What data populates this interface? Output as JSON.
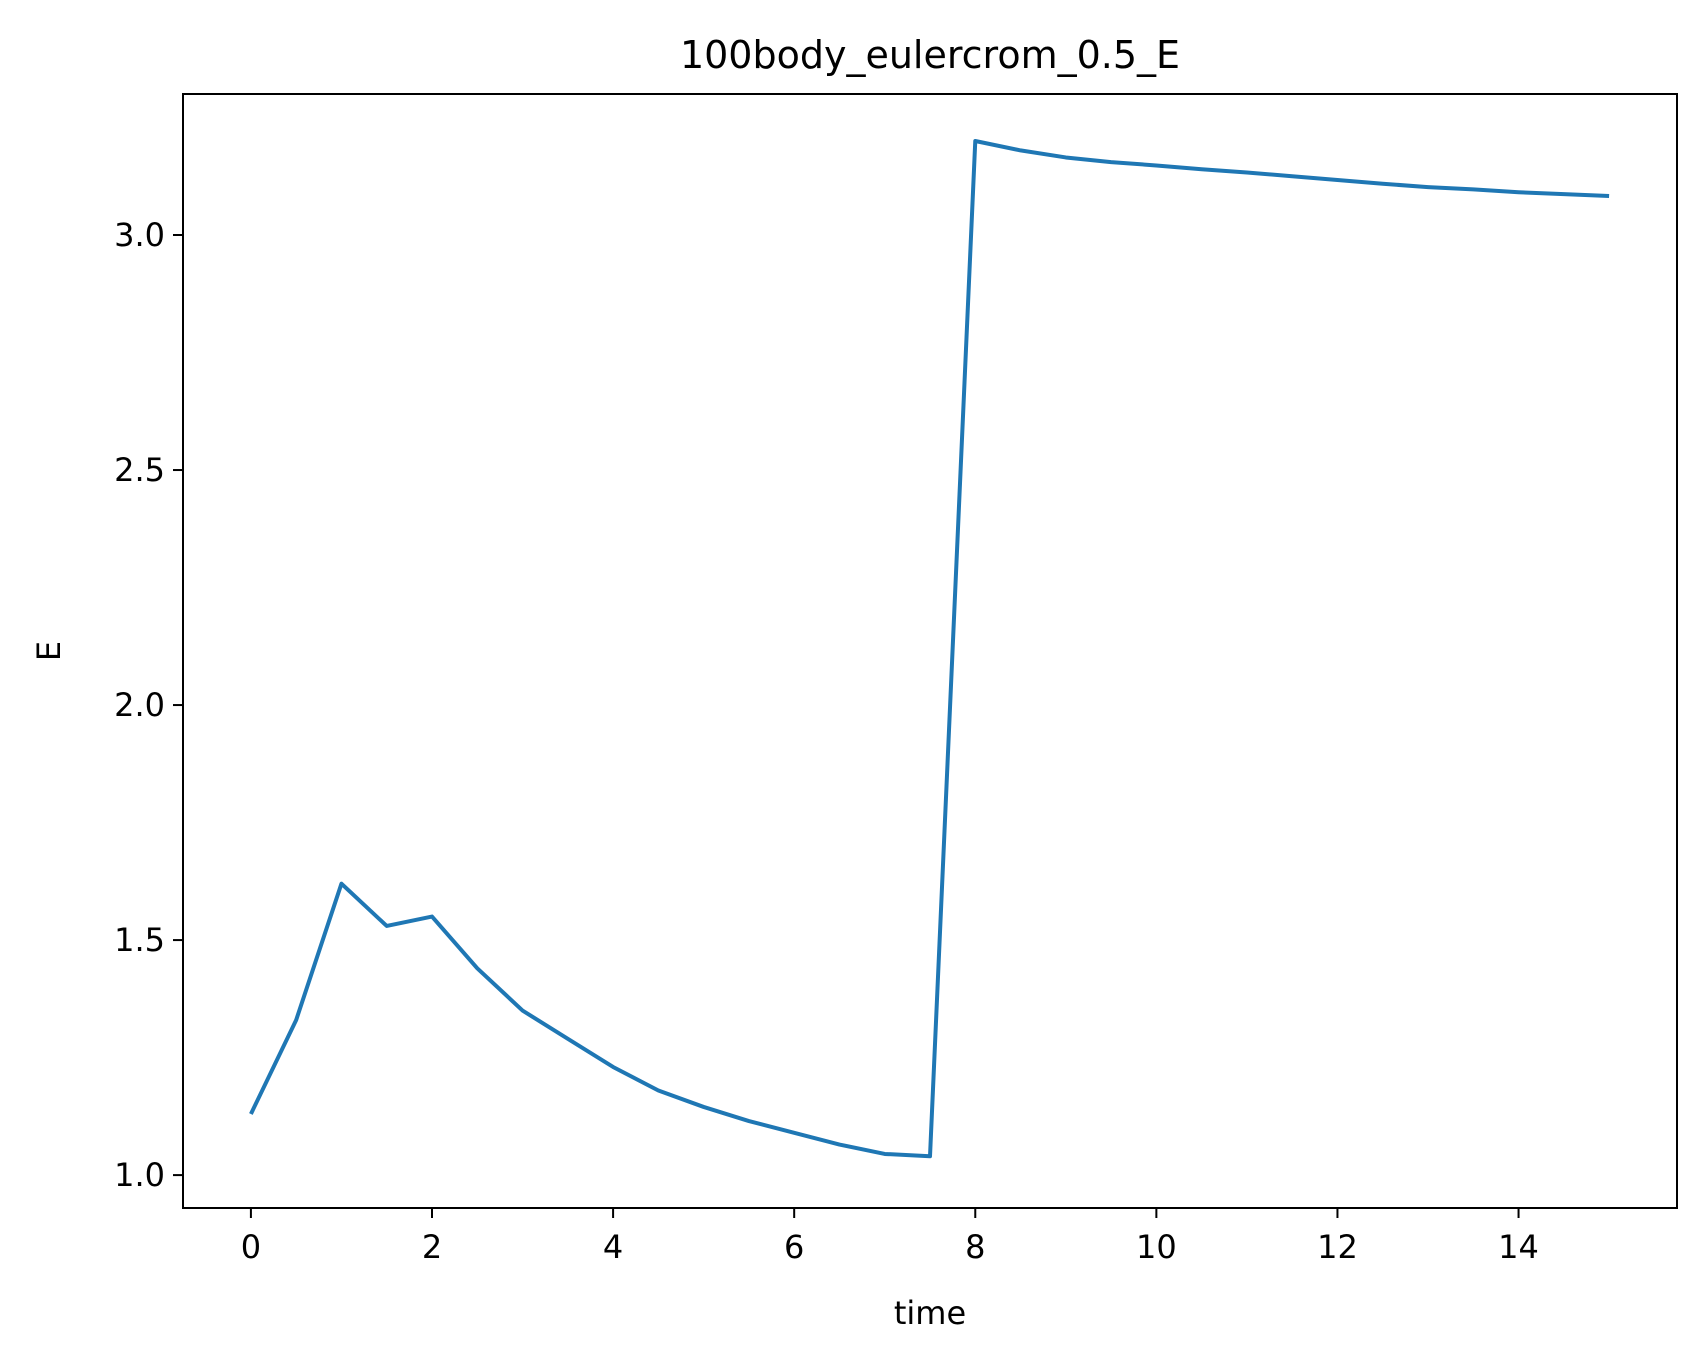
{
  "chart_data": {
    "type": "line",
    "title": "100body_eulercrom_0.5_E",
    "xlabel": "time",
    "ylabel": "E",
    "xlim": [
      -0.75,
      15.75
    ],
    "ylim": [
      0.93,
      3.3
    ],
    "xticks": [
      0,
      2,
      4,
      6,
      8,
      10,
      12,
      14
    ],
    "xtick_labels": [
      "0",
      "2",
      "4",
      "6",
      "8",
      "10",
      "12",
      "14"
    ],
    "yticks": [
      1.0,
      1.5,
      2.0,
      2.5,
      3.0
    ],
    "ytick_labels": [
      "1.0",
      "1.5",
      "2.0",
      "2.5",
      "3.0"
    ],
    "grid": false,
    "series": [
      {
        "color": "#1f77b4",
        "x": [
          0,
          0.5,
          1,
          1.5,
          2,
          2.5,
          3,
          3.5,
          4,
          4.5,
          5,
          5.5,
          6,
          6.5,
          7,
          7.5,
          8,
          8.5,
          9,
          9.5,
          10,
          10.5,
          11,
          11.5,
          12,
          12.5,
          13,
          13.5,
          14,
          14.5,
          15
        ],
        "y": [
          1.13,
          1.33,
          1.62,
          1.53,
          1.55,
          1.44,
          1.35,
          1.29,
          1.23,
          1.18,
          1.145,
          1.115,
          1.09,
          1.065,
          1.045,
          1.04,
          3.2,
          3.18,
          3.165,
          3.155,
          3.148,
          3.14,
          3.133,
          3.125,
          3.117,
          3.109,
          3.102,
          3.097,
          3.091,
          3.087,
          3.083
        ]
      }
    ]
  }
}
